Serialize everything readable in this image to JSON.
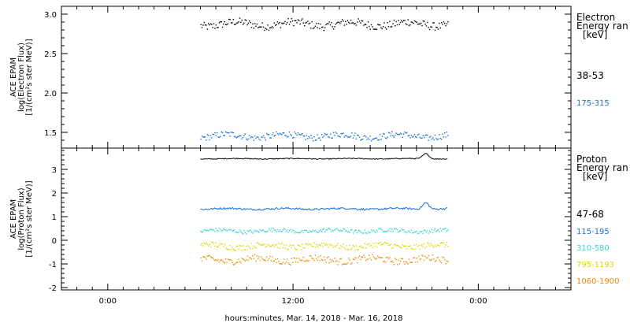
{
  "chart_data": [
    {
      "type": "scatter",
      "panel": "electron",
      "ylabel_lines": [
        "ACE EPAM",
        "log(Electron Flux)",
        "[1/(cm²s ster MeV)]"
      ],
      "ylim": [
        1.3,
        3.1
      ],
      "y_ticks": [
        1.5,
        2.0,
        2.5,
        3.0
      ],
      "y_tick_labels": [
        "1.5",
        "2.0",
        "2.5",
        "3.0"
      ],
      "legend_title_lines": [
        "Electron",
        "Energy ran",
        "[keV]"
      ],
      "series": [
        {
          "name": "38-53",
          "color": "#000000",
          "level": 2.88,
          "noise": 0.05,
          "bump": 0.0,
          "pattern": "dots"
        },
        {
          "name": "175-315",
          "color": "#1a6fd1",
          "level": 1.46,
          "noise": 0.04,
          "bump": 0.0,
          "pattern": "dots"
        }
      ]
    },
    {
      "type": "scatter",
      "panel": "proton",
      "ylabel_lines": [
        "ACE EPAM",
        "log(Proton Flux)",
        "[1/(cm²s ster MeV)]"
      ],
      "ylim": [
        -2.1,
        3.9
      ],
      "y_ticks": [
        -2,
        -1,
        0,
        1,
        2,
        3
      ],
      "y_tick_labels": [
        "-2",
        "-1",
        "0",
        "1",
        "2",
        "3"
      ],
      "legend_title_lines": [
        "Proton",
        "Energy ran",
        "[keV]"
      ],
      "series": [
        {
          "name": "47-68",
          "color": "#000000",
          "level": 3.45,
          "noise": 0.02,
          "bump": 0.22,
          "pattern": "line"
        },
        {
          "name": "115-195",
          "color": "#1a6fd1",
          "level": 1.33,
          "noise": 0.04,
          "bump": 0.28,
          "pattern": "line"
        },
        {
          "name": "310-580",
          "color": "#33d6cc",
          "level": 0.42,
          "noise": 0.08,
          "bump": 0.0,
          "pattern": "dots"
        },
        {
          "name": "795-1193",
          "color": "#d9d900",
          "level": -0.22,
          "noise": 0.12,
          "bump": 0.0,
          "pattern": "dots"
        },
        {
          "name": "1060-1900",
          "color": "#f08c00",
          "level": -0.8,
          "noise": 0.14,
          "bump": 0.0,
          "pattern": "dots"
        }
      ]
    }
  ],
  "time_axis": {
    "xlabel": "hours:minutes, Mar. 14, 2018 - Mar. 16, 2018",
    "range_hours": [
      -3,
      30
    ],
    "data_range_hours": [
      6,
      22
    ],
    "ticks": [
      {
        "h": 0,
        "label": "0:00"
      },
      {
        "h": 12,
        "label": "12:00"
      },
      {
        "h": 24,
        "label": "0:00"
      }
    ]
  }
}
